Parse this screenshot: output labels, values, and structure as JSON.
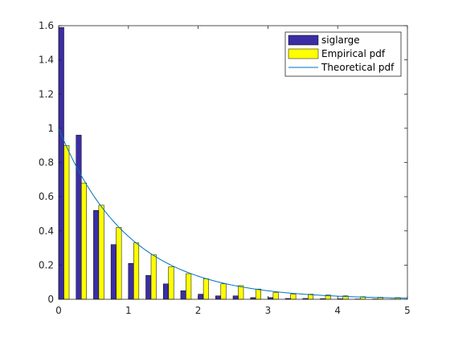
{
  "chart_data": {
    "type": "bar",
    "x": [
      0.0,
      0.25,
      0.5,
      0.75,
      1.0,
      1.25,
      1.5,
      1.75,
      2.0,
      2.25,
      2.5,
      2.75,
      3.0,
      3.25,
      3.5,
      3.75,
      4.0,
      4.25,
      4.5,
      4.75,
      5.0
    ],
    "series": [
      {
        "name": "siglarge",
        "kind": "bar",
        "color": "#3b2ea4",
        "values": [
          1.59,
          0.96,
          0.52,
          0.32,
          0.21,
          0.14,
          0.09,
          0.05,
          0.03,
          0.02,
          0.02,
          0.01,
          0.01,
          0.005,
          0.005,
          0.004,
          0.003,
          0.002,
          0.002,
          0.001,
          0.006
        ]
      },
      {
        "name": "Empirical pdf",
        "kind": "bar",
        "color": "#ffff00",
        "values": [
          0.9,
          0.68,
          0.55,
          0.42,
          0.33,
          0.26,
          0.19,
          0.15,
          0.12,
          0.09,
          0.08,
          0.06,
          0.04,
          0.03,
          0.03,
          0.025,
          0.02,
          0.015,
          0.012,
          0.01,
          0.008
        ]
      },
      {
        "name": "Theoretical pdf",
        "kind": "line",
        "color": "#0072bd",
        "function": "exp(-x)"
      }
    ],
    "xlim": [
      0,
      5
    ],
    "ylim": [
      0,
      1.6
    ],
    "xticks": [
      "0",
      "1",
      "2",
      "3",
      "4",
      "5"
    ],
    "yticks": [
      "0",
      "0.2",
      "0.4",
      "0.6",
      "0.8",
      "1",
      "1.2",
      "1.4",
      "1.6"
    ],
    "title": "",
    "xlabel": "",
    "ylabel": "",
    "grid": false,
    "legend_position": "top-right"
  }
}
